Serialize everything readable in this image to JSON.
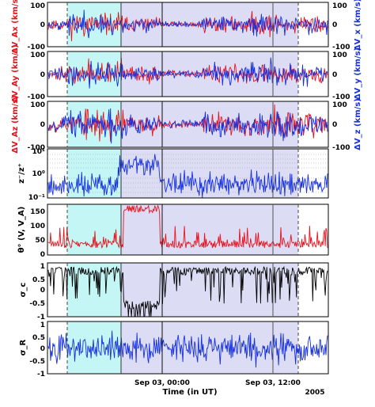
{
  "chart_data": [
    {
      "type": "line",
      "panel": "dVx",
      "ylabel_left": "ΔV_Ax (km/s)",
      "ylabel_right": "ΔV_x (km/s)",
      "left_ticks": [
        "100",
        "0",
        "-100"
      ],
      "right_ticks": [
        "100",
        "0",
        "-100"
      ],
      "ylim": [
        -100,
        100
      ],
      "series": [
        {
          "color": "#e8121b",
          "amplitude": 22,
          "seed": 11
        },
        {
          "color": "#1530e0",
          "amplitude": 22,
          "seed": 23
        }
      ]
    },
    {
      "type": "line",
      "panel": "dVy",
      "ylabel_left": "ΔV_Ay (km/s)",
      "ylabel_right": "ΔV_y (km/s)",
      "left_ticks": [
        "100",
        "0",
        "-100"
      ],
      "right_ticks": [
        "100",
        "0",
        "-100"
      ],
      "ylim": [
        -100,
        100
      ],
      "series": [
        {
          "color": "#e8121b",
          "amplitude": 25,
          "seed": 37
        },
        {
          "color": "#1530e0",
          "amplitude": 25,
          "seed": 41
        }
      ]
    },
    {
      "type": "line",
      "panel": "dVz",
      "ylabel_left": "ΔV_Az (km/s)",
      "ylabel_right": "ΔV_z (km/s)",
      "left_ticks": [
        "100",
        "0",
        "-100"
      ],
      "right_ticks": [
        "100",
        "0",
        "-100"
      ],
      "ylim": [
        -100,
        100
      ],
      "series": [
        {
          "color": "#e8121b",
          "amplitude": 30,
          "seed": 53
        },
        {
          "color": "#1530e0",
          "amplitude": 30,
          "seed": 67
        }
      ]
    },
    {
      "type": "line",
      "panel": "z_ratio",
      "ylabel_left": "z⁻/z⁺",
      "scale": "log",
      "left_ticks": [
        "10¹",
        "10⁰",
        "10⁻¹"
      ],
      "ylim": [
        0.1,
        10
      ],
      "series": [
        {
          "color": "#1530e0",
          "seed": 79
        }
      ]
    },
    {
      "type": "line",
      "panel": "theta",
      "ylabel_left": "θ° (V, V_A)",
      "left_ticks": [
        "150",
        "100",
        "50",
        "0"
      ],
      "ylim": [
        0,
        180
      ],
      "series": [
        {
          "color": "#e8121b",
          "seed": 83
        }
      ]
    },
    {
      "type": "line",
      "panel": "sigma_c",
      "ylabel_left": "σ_c",
      "left_ticks": [
        "1",
        "0.5",
        "0",
        "-0.5",
        "-1"
      ],
      "ylim": [
        -1,
        1
      ],
      "series": [
        {
          "color": "#000000",
          "seed": 97
        }
      ]
    },
    {
      "type": "line",
      "panel": "sigma_R",
      "ylabel_left": "σ_R",
      "left_ticks": [
        "1",
        "0.5",
        "0",
        "-0.5",
        "-1"
      ],
      "ylim": [
        -1,
        1
      ],
      "series": [
        {
          "color": "#1530e0",
          "seed": 101
        }
      ]
    }
  ],
  "x_axis": {
    "title": "Time (in UT)",
    "ticks": [
      {
        "label": "Sep 03, 00:00",
        "t": 0.3
      },
      {
        "label": "Sep 03, 12:00",
        "t": 0.78
      }
    ],
    "year_label": "2005"
  },
  "colors": {
    "cyan_band": "#c4f6f6",
    "lavender_band": "#dcdcf5",
    "red": "#e8121b",
    "blue": "#1530e0",
    "black": "#000000"
  }
}
